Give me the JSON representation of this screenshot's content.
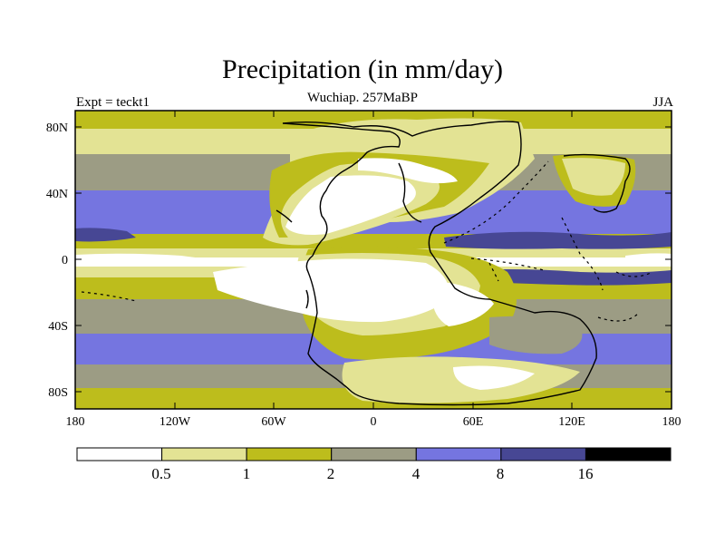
{
  "header": {
    "title": "Precipitation (in mm/day)",
    "subtitle": "Wuchiap. 257MaBP",
    "left_label": "Expt = teckt1",
    "right_label": "JJA"
  },
  "axes": {
    "x_ticks": [
      "180",
      "120W",
      "60W",
      "0",
      "60E",
      "120E",
      "180"
    ],
    "y_ticks": [
      "80N",
      "40N",
      "0",
      "40S",
      "80S"
    ]
  },
  "colorbar": {
    "colors": [
      "#ffffff",
      "#e3e394",
      "#bdbd1c",
      "#9c9c84",
      "#7575e0",
      "#474794",
      "#000000"
    ],
    "labels": [
      "0.5",
      "1",
      "2",
      "4",
      "8",
      "16"
    ]
  },
  "chart_data": {
    "type": "heatmap",
    "title": "Precipitation (in mm/day)",
    "subtitle": "Wuchiap. 257MaBP",
    "variable": "Precipitation",
    "units": "mm/day",
    "season": "JJA",
    "experiment": "teckt1",
    "contour_levels": [
      0.5,
      1,
      2,
      4,
      8,
      16
    ],
    "xlim": [
      -180,
      180
    ],
    "ylim": [
      -90,
      90
    ]
  }
}
